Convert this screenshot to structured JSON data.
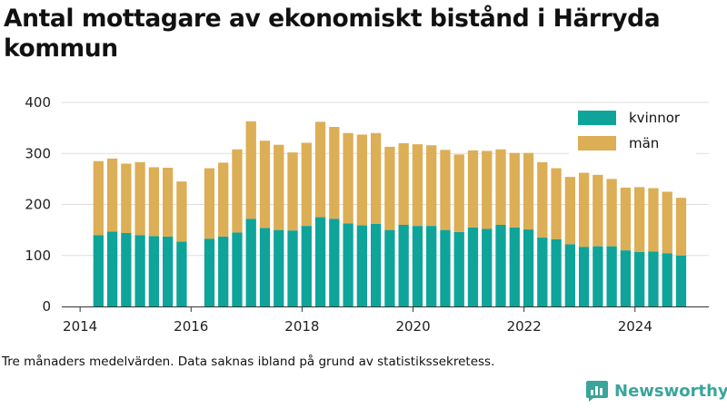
{
  "title": "Antal mottagare av ekonomiskt bistånd i Härryda kommun",
  "footnote": "Tre månaders medelvärden. Data saknas ibland på grund av statistikssekretess.",
  "brand": "Newsworthy",
  "colors": {
    "kvinnor": "#0ea49a",
    "man": "#dcae56",
    "brand": "#3aa59a",
    "axis": "#333333",
    "grid": "#dddddd"
  },
  "icons": {
    "logo": "bar-chart-speech-bubble-icon"
  },
  "chart_data": {
    "type": "bar",
    "stacked": true,
    "x": [
      2014.33,
      2014.58,
      2014.83,
      2015.08,
      2015.33,
      2015.58,
      2015.83,
      2016.33,
      2016.58,
      2016.83,
      2017.08,
      2017.33,
      2017.58,
      2017.83,
      2018.08,
      2018.33,
      2018.58,
      2018.83,
      2019.08,
      2019.33,
      2019.58,
      2019.83,
      2020.08,
      2020.33,
      2020.58,
      2020.83,
      2021.08,
      2021.33,
      2021.58,
      2021.83,
      2022.08,
      2022.33,
      2022.58,
      2022.83,
      2023.08,
      2023.33,
      2023.58,
      2023.83,
      2024.08,
      2024.33,
      2024.58,
      2024.83
    ],
    "series": [
      {
        "name": "kvinnor",
        "values": [
          140,
          147,
          144,
          140,
          138,
          137,
          127,
          133,
          137,
          145,
          172,
          154,
          150,
          149,
          158,
          175,
          172,
          163,
          159,
          162,
          150,
          160,
          158,
          158,
          150,
          146,
          155,
          152,
          160,
          155,
          151,
          135,
          132,
          122,
          117,
          118,
          118,
          110,
          107,
          108,
          104,
          100
        ]
      },
      {
        "name": "män",
        "values": [
          145,
          143,
          136,
          143,
          135,
          135,
          118,
          138,
          145,
          163,
          191,
          171,
          167,
          153,
          163,
          187,
          180,
          177,
          178,
          178,
          163,
          160,
          160,
          158,
          157,
          152,
          151,
          153,
          148,
          146,
          150,
          148,
          139,
          132,
          145,
          140,
          132,
          123,
          127,
          124,
          121,
          113
        ]
      }
    ],
    "xticks": [
      "2014",
      "2016",
      "2018",
      "2020",
      "2022",
      "2024"
    ],
    "yticks": [
      "0",
      "100",
      "200",
      "300",
      "400"
    ],
    "xlim": [
      2013.67,
      2025.33
    ],
    "ylim": [
      0,
      400
    ],
    "grid": "horizontal",
    "legend": "top-right"
  }
}
